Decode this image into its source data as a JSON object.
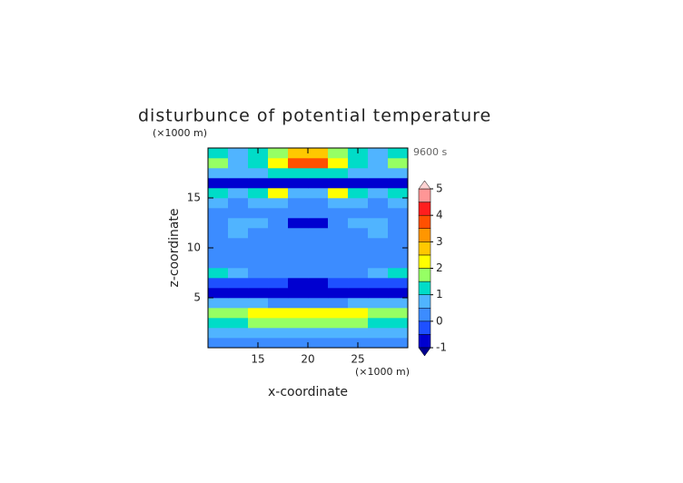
{
  "chart_data": {
    "type": "contour",
    "title": "disturbunce of potential temperature",
    "y_unit": "(×1000 m)",
    "x_unit": "(×1000 m)",
    "time_label": "9600 s",
    "x_label": "x-coordinate",
    "y_label": "z-coordinate",
    "xlim": [
      10,
      30
    ],
    "ylim": [
      0,
      20
    ],
    "xticks": [
      15,
      20,
      25
    ],
    "yticks": [
      5,
      10,
      15
    ],
    "x": [
      11,
      13,
      15,
      17,
      19,
      21,
      23,
      25,
      27,
      29
    ],
    "y": [
      0.5,
      1.5,
      2.5,
      3.5,
      4.5,
      5.5,
      6.5,
      7.5,
      8.5,
      9.5,
      10.5,
      11.5,
      12.5,
      13.5,
      14.5,
      15.5,
      16.5,
      17.5,
      18.5,
      19.5
    ],
    "z": [
      [
        0.2,
        0.2,
        0.3,
        0.3,
        0.2,
        0.2,
        0.3,
        0.3,
        0.2,
        0.2
      ],
      [
        0.7,
        0.8,
        0.8,
        0.7,
        0.6,
        0.6,
        0.7,
        0.8,
        0.8,
        0.7
      ],
      [
        1.3,
        1.4,
        1.6,
        1.7,
        1.7,
        1.7,
        1.7,
        1.6,
        1.4,
        1.3
      ],
      [
        1.7,
        1.9,
        2.2,
        2.3,
        2.2,
        2.2,
        2.3,
        2.2,
        1.9,
        1.7
      ],
      [
        0.6,
        0.6,
        0.5,
        0.4,
        0.3,
        0.3,
        0.4,
        0.5,
        0.6,
        0.6
      ],
      [
        -0.8,
        -0.8,
        -0.8,
        -0.8,
        -0.9,
        -0.9,
        -0.8,
        -0.8,
        -0.8,
        -0.8
      ],
      [
        -0.2,
        -0.1,
        -0.3,
        -0.4,
        -0.6,
        -0.6,
        -0.4,
        -0.3,
        -0.1,
        -0.2
      ],
      [
        1.2,
        0.6,
        0.4,
        0.3,
        0.2,
        0.2,
        0.3,
        0.4,
        0.6,
        1.2
      ],
      [
        0.4,
        0.3,
        0.3,
        0.2,
        0.1,
        0.1,
        0.2,
        0.3,
        0.3,
        0.4
      ],
      [
        0.3,
        0.3,
        0.2,
        0.1,
        0.2,
        0.2,
        0.1,
        0.2,
        0.3,
        0.3
      ],
      [
        0.3,
        0.3,
        0.1,
        0.2,
        0.3,
        0.3,
        0.2,
        0.1,
        0.3,
        0.3
      ],
      [
        0.3,
        0.6,
        0.3,
        0.2,
        0.2,
        0.2,
        0.2,
        0.3,
        0.6,
        0.3
      ],
      [
        0.3,
        0.5,
        0.5,
        0.3,
        -0.6,
        -0.6,
        0.3,
        0.5,
        0.5,
        0.3
      ],
      [
        0.4,
        0.3,
        0.3,
        0.2,
        0.3,
        0.3,
        0.2,
        0.3,
        0.3,
        0.4
      ],
      [
        0.7,
        0.4,
        0.6,
        0.8,
        0.4,
        0.4,
        0.8,
        0.6,
        0.4,
        0.7
      ],
      [
        1.0,
        0.6,
        1.3,
        2.1,
        0.7,
        0.7,
        2.1,
        1.3,
        0.6,
        1.0
      ],
      [
        -0.8,
        -0.7,
        -0.6,
        -0.7,
        -0.8,
        -0.8,
        -0.7,
        -0.6,
        -0.7,
        -0.8
      ],
      [
        0.8,
        0.5,
        0.7,
        1.1,
        1.4,
        1.4,
        1.1,
        0.7,
        0.5,
        0.8
      ],
      [
        1.6,
        0.6,
        1.3,
        2.2,
        3.8,
        3.8,
        2.2,
        1.3,
        0.6,
        1.6
      ],
      [
        1.2,
        0.5,
        1.1,
        1.8,
        2.6,
        2.6,
        1.8,
        1.1,
        0.5,
        1.2
      ]
    ],
    "levels": [
      -1,
      -0.5,
      0,
      0.5,
      1,
      1.5,
      2,
      2.5,
      3,
      3.5,
      4,
      4.5,
      5
    ],
    "colors": [
      "#000090",
      "#0000d0",
      "#1e50ff",
      "#3c8cff",
      "#50b4ff",
      "#00dcc8",
      "#96ff64",
      "#ffff00",
      "#ffc800",
      "#ff9600",
      "#ff5000",
      "#ff1e1e",
      "#ff9696",
      "#ffd2d2"
    ],
    "colorbar_ticks": [
      -1,
      0,
      1,
      2,
      3,
      4,
      5
    ]
  }
}
